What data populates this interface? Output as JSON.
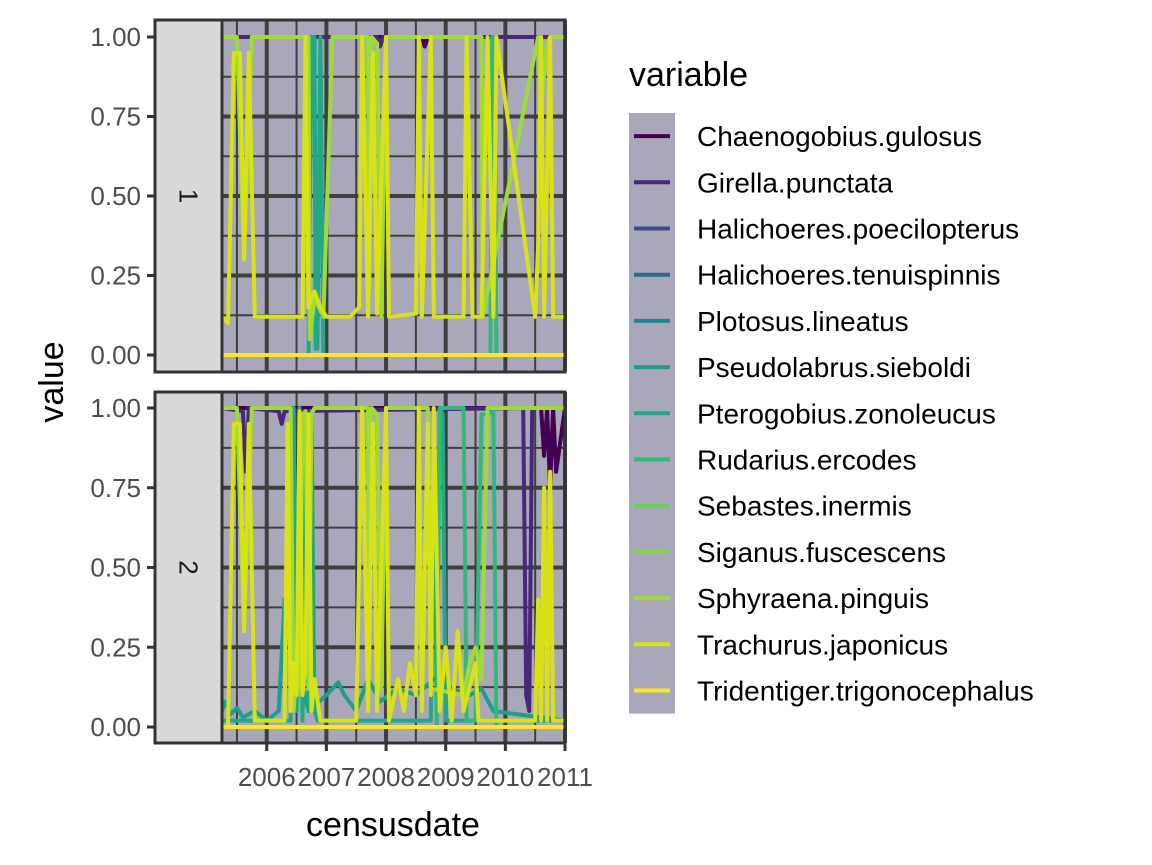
{
  "chart_data": {
    "type": "line",
    "xlabel": "censusdate",
    "ylabel": "value",
    "x_ticks": [
      "2006",
      "2007",
      "2008",
      "2009",
      "2010",
      "2011"
    ],
    "y_ticks": [
      "0.00",
      "0.25",
      "0.50",
      "0.75",
      "1.00"
    ],
    "ylim": [
      0,
      1
    ],
    "xlim": [
      2005.25,
      2011.0
    ],
    "legend_title": "variable",
    "legend_position": "right",
    "grid": true,
    "facets": [
      "1",
      "2"
    ],
    "series": [
      {
        "name": "Chaenogobius.gulosus",
        "color": "#440154"
      },
      {
        "name": "Girella.punctata",
        "color": "#482878"
      },
      {
        "name": "Halichoeres.poecilopterus",
        "color": "#3E4A89"
      },
      {
        "name": "Halichoeres.tenuispinnis",
        "color": "#31688E"
      },
      {
        "name": "Plotosus.lineatus",
        "color": "#26828E"
      },
      {
        "name": "Pseudolabrus.sieboldi",
        "color": "#1F9E89"
      },
      {
        "name": "Pterogobius.zonoleucus",
        "color": "#22A884"
      },
      {
        "name": "Rudarius.ercodes",
        "color": "#35B779"
      },
      {
        "name": "Sebastes.inermis",
        "color": "#6DCD59"
      },
      {
        "name": "Siganus.fuscescens",
        "color": "#86D549"
      },
      {
        "name": "Sphyraena.pinguis",
        "color": "#A0DA39"
      },
      {
        "name": "Trachurus.japonicus",
        "color": "#D8E219"
      },
      {
        "name": "Tridentiger.trigonocephalus",
        "color": "#FDE725"
      }
    ],
    "panels": [
      {
        "facet": "1",
        "lines": [
          {
            "series": "Chaenogobius.gulosus",
            "x": [
              2005.25,
              2006.7,
              2006.75,
              2006.8,
              2008.6,
              2008.65,
              2008.7,
              2011.0
            ],
            "y": [
              1,
              1,
              0.97,
              1,
              1,
              0.97,
              1,
              1
            ]
          },
          {
            "series": "Girella.punctata",
            "x": [
              2005.25,
              2007.85,
              2007.9,
              2007.95,
              2011.0
            ],
            "y": [
              1,
              1,
              0.97,
              1,
              1
            ]
          },
          {
            "series": "Pterogobius.zonoleucus",
            "x": [
              2005.25,
              2006.7,
              2006.75,
              2006.8,
              2006.82,
              2006.85,
              2006.9,
              2006.95,
              2011.0
            ],
            "y": [
              0,
              0,
              1,
              1,
              0.02,
              0.02,
              1,
              0,
              0
            ]
          },
          {
            "series": "Rudarius.ercodes",
            "x": [
              2005.25,
              2009.75,
              2009.78,
              2009.82,
              2009.85,
              2011.0
            ],
            "y": [
              0,
              0,
              1,
              1,
              0,
              0
            ]
          },
          {
            "series": "Sphyraena.pinguis",
            "x": [
              2005.25,
              2005.5,
              2005.62,
              2005.75,
              2006.7,
              2006.72,
              2006.8,
              2006.95,
              2007.1,
              2007.7,
              2007.72,
              2007.76,
              2007.85,
              2007.92,
              2008.0,
              2009.6,
              2009.62,
              2010.55,
              2010.6,
              2010.7,
              2010.75,
              2011.0
            ],
            "y": [
              1,
              1,
              0.3,
              1,
              1,
              0.05,
              0.18,
              0.12,
              1,
              1,
              0.2,
              1,
              0.98,
              0.12,
              1,
              1,
              0.12,
              1,
              0.78,
              0.98,
              1,
              1
            ]
          },
          {
            "series": "Trachurus.japonicus",
            "x": [
              2005.25,
              2005.35,
              2005.45,
              2005.55,
              2005.62,
              2005.7,
              2005.8,
              2006.6,
              2006.65,
              2006.7,
              2006.75,
              2006.8,
              2006.9,
              2007.0,
              2007.4,
              2007.55,
              2007.6,
              2007.7,
              2007.78,
              2007.85,
              2008.0,
              2008.05,
              2008.5,
              2008.55,
              2008.6,
              2008.75,
              2008.8,
              2009.3,
              2009.35,
              2009.45,
              2009.6,
              2009.7,
              2009.8,
              2009.85,
              2010.5,
              2010.55,
              2010.6,
              2010.65,
              2010.75,
              2010.8,
              2010.85,
              2011.0
            ],
            "y": [
              0.12,
              0.1,
              0.95,
              0.95,
              0.3,
              0.95,
              0.12,
              0.12,
              1,
              0.15,
              0.18,
              0.2,
              0.15,
              0.12,
              0.12,
              0.15,
              1,
              0.12,
              0.95,
              0.13,
              1,
              0.12,
              0.13,
              1,
              0.12,
              1,
              0.12,
              0.12,
              1,
              0.12,
              0.12,
              1,
              0.12,
              1,
              0.12,
              0.35,
              1,
              0.12,
              1,
              0.12,
              0.12,
              0.12
            ]
          },
          {
            "series": "Tridentiger.trigonocephalus",
            "x": [
              2005.25,
              2011.0
            ],
            "y": [
              0,
              0
            ]
          }
        ]
      },
      {
        "facet": "2",
        "lines": [
          {
            "series": "Chaenogobius.gulosus",
            "x": [
              2005.25,
              2010.05,
              2010.1,
              2010.15,
              2010.6,
              2010.65,
              2010.7,
              2010.75,
              2010.8,
              2010.85,
              2011.0
            ],
            "y": [
              1,
              1,
              1,
              1,
              1,
              0.85,
              1,
              0.75,
              1,
              0.8,
              1
            ]
          },
          {
            "series": "Girella.punctata",
            "x": [
              2005.25,
              2005.6,
              2005.65,
              2005.7,
              2006.2,
              2006.25,
              2006.3,
              2010.3,
              2010.35,
              2010.4,
              2010.45,
              2011.0
            ],
            "y": [
              1,
              0.99,
              0.8,
              1,
              0.99,
              0.95,
              0.99,
              1,
              0.1,
              0.05,
              1,
              1
            ]
          },
          {
            "series": "Pseudolabrus.sieboldi",
            "x": [
              2005.25,
              2005.3,
              2005.4,
              2005.5,
              2005.6,
              2005.8,
              2006.0,
              2006.2,
              2006.3,
              2006.5,
              2006.7,
              2007.0,
              2007.1,
              2007.2,
              2007.3,
              2007.5,
              2007.7,
              2007.9,
              2008.2,
              2008.5,
              2008.8,
              2009.1,
              2009.4,
              2009.6,
              2009.8,
              2011.0
            ],
            "y": [
              0.05,
              0.08,
              0.04,
              0.06,
              0.03,
              0.05,
              0.02,
              0.05,
              0.4,
              0.2,
              0.05,
              0.1,
              0.12,
              0.14,
              0.1,
              0.05,
              0.15,
              0.08,
              0.12,
              0.1,
              0.15,
              0.12,
              0.1,
              0.12,
              0.05,
              0.02
            ]
          },
          {
            "series": "Pterogobius.zonoleucus",
            "x": [
              2005.25,
              2006.4,
              2006.45,
              2006.5,
              2006.55,
              2006.6,
              2006.65,
              2006.7,
              2006.75,
              2006.8,
              2006.85,
              2008.75,
              2008.8,
              2008.85,
              2008.9,
              2008.95,
              2009.0,
              2011.0
            ],
            "y": [
              0.02,
              0.02,
              1,
              0.05,
              1,
              0.02,
              0.99,
              0.05,
              0.99,
              0.05,
              0.02,
              0.02,
              1,
              0.05,
              1,
              0.98,
              0.02,
              0.02
            ]
          },
          {
            "series": "Rudarius.ercodes",
            "x": [
              2005.25,
              2008.85,
              2008.9,
              2009.3,
              2009.35,
              2009.5,
              2009.6,
              2009.7,
              2009.8,
              2009.85,
              2011.0
            ],
            "y": [
              0,
              0,
              1,
              1,
              0.02,
              0.02,
              0.98,
              0.98,
              0.99,
              0,
              0
            ]
          },
          {
            "series": "Sphyraena.pinguis",
            "x": [
              2005.25,
              2005.5,
              2005.62,
              2005.75,
              2006.4,
              2006.45,
              2006.5,
              2006.55,
              2006.6,
              2006.65,
              2006.7,
              2006.75,
              2006.8,
              2007.7,
              2007.72,
              2007.76,
              2007.85,
              2007.92,
              2008.0,
              2008.7,
              2008.75,
              2009.3,
              2009.4,
              2009.5,
              2009.6,
              2009.7,
              2011.0
            ],
            "y": [
              1,
              1,
              0.3,
              1,
              1,
              0.05,
              0.18,
              0.12,
              0.98,
              0.99,
              0.12,
              0.98,
              1,
              1,
              0.2,
              1,
              0.98,
              0.12,
              1,
              1,
              0.12,
              0.1,
              0.2,
              0.25,
              0.15,
              1,
              1
            ]
          },
          {
            "series": "Trachurus.japonicus",
            "x": [
              2005.25,
              2005.35,
              2005.45,
              2005.55,
              2005.62,
              2005.7,
              2005.8,
              2006.3,
              2006.35,
              2006.4,
              2006.45,
              2006.5,
              2006.55,
              2006.6,
              2006.65,
              2006.7,
              2006.75,
              2006.8,
              2006.9,
              2007.5,
              2007.6,
              2007.7,
              2007.78,
              2007.85,
              2008.0,
              2008.05,
              2008.2,
              2008.3,
              2008.4,
              2008.5,
              2008.55,
              2008.6,
              2008.7,
              2008.75,
              2008.8,
              2008.9,
              2009.0,
              2009.1,
              2009.2,
              2009.3,
              2009.5,
              2009.55,
              2009.6,
              2010.5,
              2010.55,
              2010.6,
              2010.65,
              2010.7,
              2010.75,
              2010.8,
              2010.85,
              2011.0
            ],
            "y": [
              0,
              0,
              0.95,
              0.95,
              0.3,
              0.95,
              0.02,
              0.02,
              0.95,
              0.05,
              0.2,
              0.1,
              0.99,
              0.1,
              0.2,
              0.98,
              0.05,
              0.15,
              0.02,
              0.02,
              1,
              0.05,
              0.95,
              0.05,
              1,
              0.02,
              0.15,
              0.05,
              0.2,
              0.1,
              1,
              0.05,
              0.95,
              0.1,
              1,
              0.05,
              0.25,
              0.02,
              0.3,
              0.05,
              0.2,
              0.02,
              0.02,
              0.02,
              0.4,
              0.02,
              0.75,
              0.02,
              0.8,
              0.02,
              0.02,
              0.02
            ]
          },
          {
            "series": "Tridentiger.trigonocephalus",
            "x": [
              2005.25,
              2011.0
            ],
            "y": [
              0,
              0
            ]
          }
        ]
      }
    ]
  }
}
